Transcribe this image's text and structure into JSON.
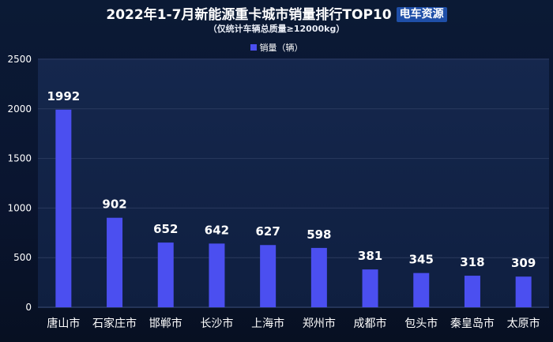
{
  "header": {
    "title": "2022年1-7月新能源重卡城市销量排行TOP10",
    "brand": "电车资源",
    "subtitle": "（仅统计车辆总质量≥12000kg）"
  },
  "colors": {
    "bar": "#4b4ff0",
    "grid": "#2a3a5e",
    "tick_text": "#ffffff",
    "label_text": "#ffffff"
  },
  "chart_data": {
    "type": "bar",
    "title": "2022年1-7月新能源重卡城市销量排行TOP10",
    "subtitle": "（仅统计车辆总质量≥12000kg）",
    "categories": [
      "唐山市",
      "石家庄市",
      "邯郸市",
      "长沙市",
      "上海市",
      "郑州市",
      "成都市",
      "包头市",
      "秦皇岛市",
      "太原市"
    ],
    "series": [
      {
        "name": "销量（辆）",
        "values": [
          1992,
          902,
          652,
          642,
          627,
          598,
          381,
          345,
          318,
          309
        ]
      }
    ],
    "ylim": [
      0,
      2500
    ],
    "yticks": [
      0,
      500,
      1000,
      1500,
      2000,
      2500
    ],
    "grid": true,
    "legend_position": "top-center",
    "data_labels": true
  }
}
